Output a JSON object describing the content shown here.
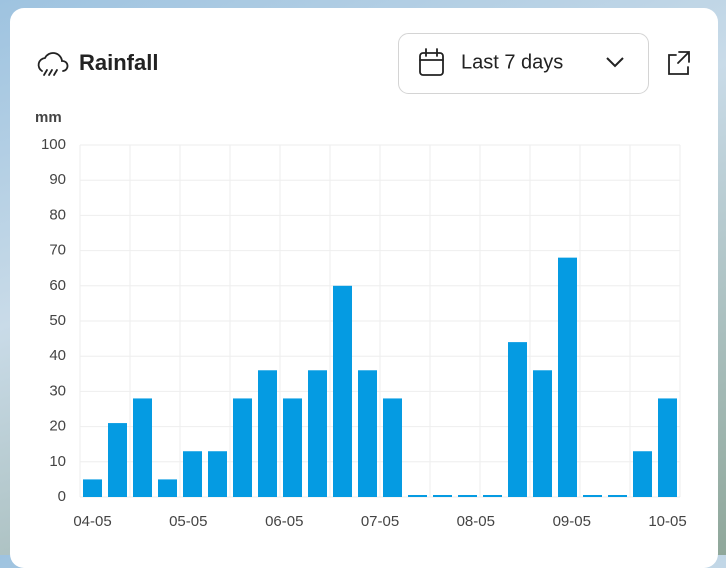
{
  "header": {
    "title": "Rainfall",
    "range": "Last 7 days"
  },
  "chart_data": {
    "type": "bar",
    "y_label": "mm",
    "x": [
      0,
      1,
      2,
      3,
      4,
      5,
      6,
      7,
      8,
      9,
      10,
      11,
      12,
      13,
      14,
      15,
      16,
      17,
      18,
      19,
      20,
      21,
      22,
      23
    ],
    "xlim": [
      -0.5,
      23.5
    ],
    "xticks": [
      {
        "value": 0,
        "label": "04-05"
      },
      {
        "value": 3.83,
        "label": "05-05"
      },
      {
        "value": 7.67,
        "label": "06-05"
      },
      {
        "value": 11.5,
        "label": "07-05"
      },
      {
        "value": 15.33,
        "label": "08-05"
      },
      {
        "value": 19.17,
        "label": "09-05"
      },
      {
        "value": 23,
        "label": "10-05"
      }
    ],
    "values": [
      5,
      21,
      28,
      5,
      13,
      13,
      28,
      36,
      28,
      36,
      60,
      36,
      28,
      0,
      0,
      0,
      0,
      44,
      36,
      68,
      0,
      0,
      13,
      28
    ],
    "color": "#059be2",
    "ylim": [
      0,
      100
    ],
    "yticks": [
      0,
      10,
      20,
      30,
      40,
      50,
      60,
      70,
      80,
      90,
      100
    ],
    "grid": true
  }
}
